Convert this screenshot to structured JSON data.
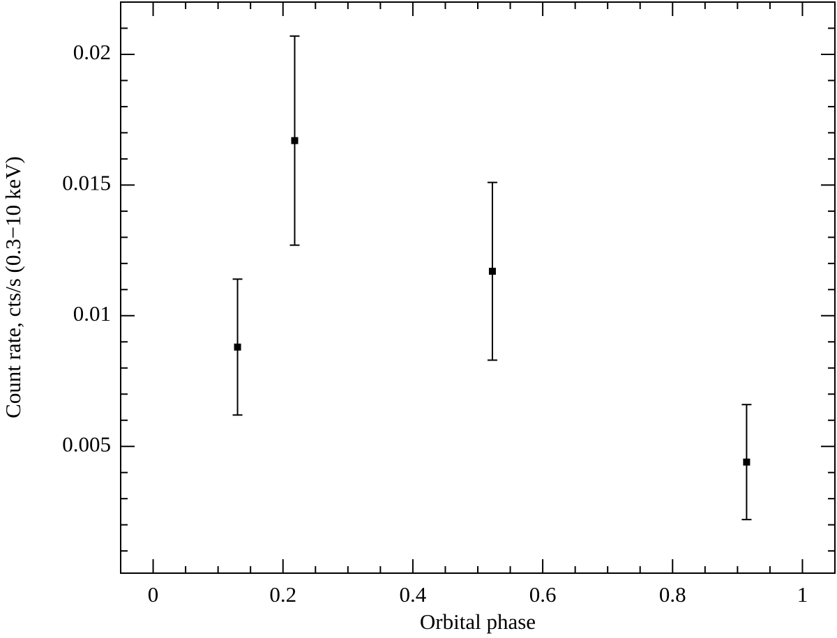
{
  "chart_data": {
    "type": "scatter",
    "xlabel": "Orbital phase",
    "ylabel": "Count rate, cts/s (0.3−10 keV)",
    "x": [
      0.13,
      0.218,
      0.5225,
      0.914
    ],
    "values": [
      0.0088,
      0.0167,
      0.0117,
      0.0044
    ],
    "errors": [
      0.0026,
      0.004,
      0.0034,
      0.0022
    ],
    "color": "#000000",
    "xlim": [
      -0.05,
      1.05
    ],
    "ylim": [
      0.00015,
      0.022
    ],
    "xticks": [
      0,
      0.2,
      0.4,
      0.6,
      0.8,
      1
    ],
    "yticks": [
      0.005,
      0.01,
      0.015,
      0.02
    ],
    "xminorticks": [
      0.05,
      0.1,
      0.15,
      0.25,
      0.3,
      0.35,
      0.45,
      0.5,
      0.55,
      0.65,
      0.7,
      0.75,
      0.85,
      0.9,
      0.95
    ],
    "yminorticks": [
      0.001,
      0.002,
      0.003,
      0.004,
      0.006,
      0.007,
      0.008,
      0.009,
      0.011,
      0.012,
      0.013,
      0.014,
      0.016,
      0.017,
      0.018,
      0.019,
      0.021
    ]
  }
}
